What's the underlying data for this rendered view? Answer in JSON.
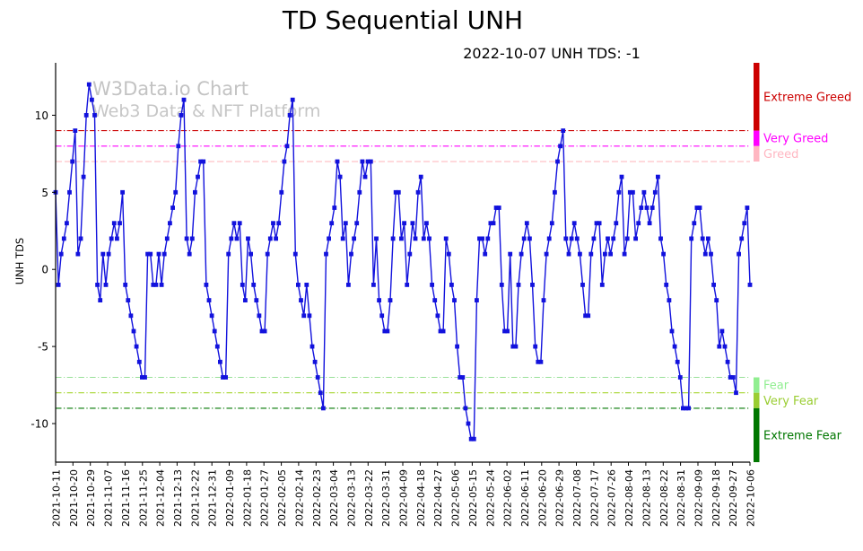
{
  "title": "TD Sequential UNH",
  "subtitle": "2022-10-07 UNH TDS: -1",
  "watermark": {
    "line1": "W3Data.io Chart",
    "line2": "Web3 Data & NFT Platform"
  },
  "chart_data": {
    "type": "line",
    "title": "TD Sequential UNH",
    "ylabel": "UNH TDS",
    "marker": "square",
    "line_color": "#1212dd",
    "grid": false,
    "ylim": [
      -12.5,
      13.4
    ],
    "y_ticks": [
      -10,
      -5,
      0,
      5,
      10
    ],
    "x_tick_labels": [
      "2021-10-11",
      "2021-10-20",
      "2021-10-29",
      "2021-11-07",
      "2021-11-16",
      "2021-11-25",
      "2021-12-04",
      "2021-12-13",
      "2021-12-22",
      "2021-12-31",
      "2022-01-09",
      "2022-01-18",
      "2022-01-27",
      "2022-02-05",
      "2022-02-14",
      "2022-02-23",
      "2022-03-04",
      "2022-03-13",
      "2022-03-22",
      "2022-03-31",
      "2022-04-09",
      "2022-04-18",
      "2022-04-27",
      "2022-05-06",
      "2022-05-15",
      "2022-05-24",
      "2022-06-02",
      "2022-06-11",
      "2022-06-20",
      "2022-06-29",
      "2022-07-08",
      "2022-07-17",
      "2022-07-26",
      "2022-08-04",
      "2022-08-13",
      "2022-08-22",
      "2022-08-31",
      "2022-09-09",
      "2022-09-18",
      "2022-09-27",
      "2022-10-06"
    ],
    "values": [
      5,
      -1,
      1,
      2,
      3,
      5,
      7,
      9,
      1,
      2,
      6,
      10,
      12,
      11,
      10,
      -1,
      -2,
      1,
      -1,
      1,
      2,
      3,
      2,
      3,
      5,
      -1,
      -2,
      -3,
      -4,
      -5,
      -6,
      -7,
      -7,
      1,
      1,
      -1,
      -1,
      1,
      -1,
      1,
      2,
      3,
      4,
      5,
      8,
      10,
      11,
      2,
      1,
      2,
      5,
      6,
      7,
      7,
      -1,
      -2,
      -3,
      -4,
      -5,
      -6,
      -7,
      -7,
      1,
      2,
      3,
      2,
      3,
      -1,
      -2,
      2,
      1,
      -1,
      -2,
      -3,
      -4,
      -4,
      1,
      2,
      3,
      2,
      3,
      5,
      7,
      8,
      10,
      11,
      1,
      -1,
      -2,
      -3,
      -1,
      -3,
      -5,
      -6,
      -7,
      -8,
      -9,
      1,
      2,
      3,
      4,
      7,
      6,
      2,
      3,
      -1,
      1,
      2,
      3,
      5,
      7,
      6,
      7,
      7,
      -1,
      2,
      -2,
      -3,
      -4,
      -4,
      -2,
      2,
      5,
      5,
      2,
      3,
      -1,
      1,
      3,
      2,
      5,
      6,
      2,
      3,
      2,
      -1,
      -2,
      -3,
      -4,
      -4,
      2,
      1,
      -1,
      -2,
      -5,
      -7,
      -7,
      -9,
      -10,
      -11,
      -11,
      -2,
      2,
      2,
      1,
      2,
      3,
      3,
      4,
      4,
      -1,
      -4,
      -4,
      1,
      -5,
      -5,
      -1,
      1,
      2,
      3,
      2,
      -1,
      -5,
      -6,
      -6,
      -2,
      1,
      2,
      3,
      5,
      7,
      8,
      9,
      2,
      1,
      2,
      3,
      2,
      1,
      -1,
      -3,
      -3,
      1,
      2,
      3,
      3,
      -1,
      1,
      2,
      1,
      2,
      3,
      5,
      6,
      1,
      2,
      5,
      5,
      2,
      3,
      4,
      5,
      4,
      3,
      4,
      5,
      6,
      2,
      1,
      -1,
      -2,
      -4,
      -5,
      -6,
      -7,
      -9,
      -9,
      -9,
      2,
      3,
      4,
      4,
      2,
      1,
      2,
      1,
      -1,
      -2,
      -5,
      -4,
      -5,
      -6,
      -7,
      -7,
      -8,
      1,
      2,
      3,
      4,
      -1
    ],
    "zones": [
      {
        "id": "extreme-greed",
        "label": "Extreme Greed",
        "level": 9,
        "band": [
          9,
          "max"
        ],
        "dash": "dashdot",
        "line_color": "#cc0000",
        "bar_color": "#cc0000",
        "label_color": "#cc0000"
      },
      {
        "id": "very-greed",
        "label": "Very Greed",
        "level": 8,
        "band": [
          8,
          9
        ],
        "dash": "dashdot",
        "line_color": "#ff00ff",
        "bar_color": "#ff00ff",
        "label_color": "#ff00ff"
      },
      {
        "id": "greed",
        "label": "Greed",
        "level": 7,
        "band": [
          7,
          8
        ],
        "dash": "dashed",
        "line_color": "#ffb3b8",
        "bar_color": "#ffb6c1",
        "label_color": "#ffb6c1"
      },
      {
        "id": "fear",
        "label": "Fear",
        "level": -7,
        "band": [
          -8,
          -7
        ],
        "dash": "dashdot",
        "line_color": "#98e098",
        "bar_color": "#90ee90",
        "label_color": "#90ee90"
      },
      {
        "id": "very-fear",
        "label": "Very Fear",
        "level": -8,
        "band": [
          -9,
          -8
        ],
        "dash": "dashdot",
        "line_color": "#a6d630",
        "bar_color": "#9acd32",
        "label_color": "#9acd32"
      },
      {
        "id": "extreme-fear",
        "label": "Extreme Fear",
        "level": -9,
        "band": [
          "min",
          -9
        ],
        "dash": "dashdot",
        "line_color": "#007700",
        "bar_color": "#007700",
        "label_color": "#007700"
      }
    ]
  }
}
